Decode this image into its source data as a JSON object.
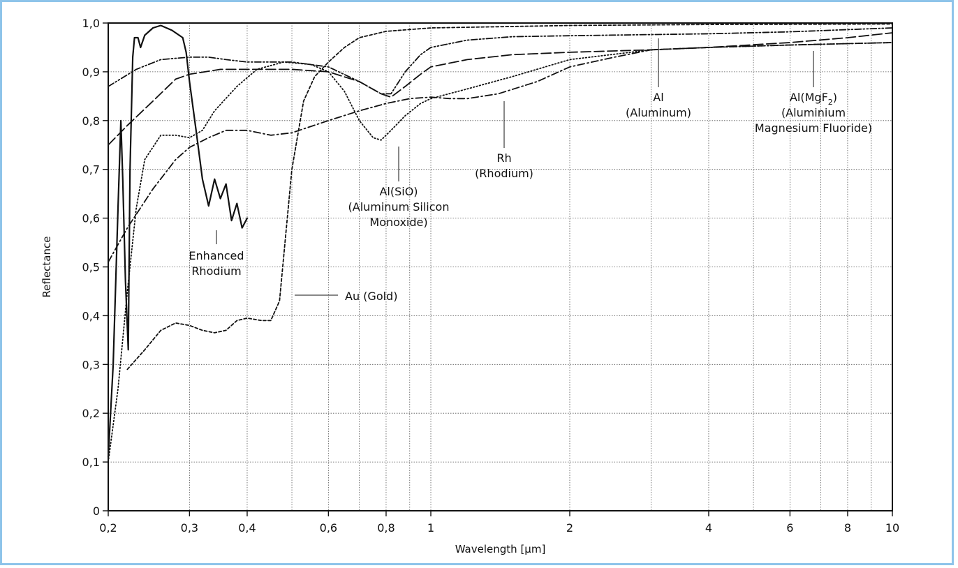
{
  "chart_data": {
    "type": "line",
    "xlabel": "Wavelength [µm]",
    "ylabel": "Reflectance",
    "xscale": "log",
    "xlim": [
      0.2,
      10
    ],
    "ylim": [
      0,
      1.0
    ],
    "grid": true,
    "x_ticks": [
      {
        "value": 0.2,
        "label": "0,2"
      },
      {
        "value": 0.3,
        "label": "0,3"
      },
      {
        "value": 0.4,
        "label": "0,4"
      },
      {
        "value": 0.6,
        "label": "0,6"
      },
      {
        "value": 0.8,
        "label": "0,8"
      },
      {
        "value": 1,
        "label": "1"
      },
      {
        "value": 2,
        "label": "2"
      },
      {
        "value": 4,
        "label": "4"
      },
      {
        "value": 6,
        "label": "6"
      },
      {
        "value": 8,
        "label": "8"
      },
      {
        "value": 10,
        "label": "10"
      }
    ],
    "x_minor_grid": [
      0.5,
      0.7,
      0.9,
      3,
      5,
      7,
      9
    ],
    "y_ticks": [
      {
        "value": 0,
        "label": "0"
      },
      {
        "value": 0.1,
        "label": "0,1"
      },
      {
        "value": 0.2,
        "label": "0,2"
      },
      {
        "value": 0.3,
        "label": "0,3"
      },
      {
        "value": 0.4,
        "label": "0,4"
      },
      {
        "value": 0.5,
        "label": "0,5"
      },
      {
        "value": 0.6,
        "label": "0,6"
      },
      {
        "value": 0.7,
        "label": "0,7"
      },
      {
        "value": 0.8,
        "label": "0,8"
      },
      {
        "value": 0.9,
        "label": "0,9"
      },
      {
        "value": 1.0,
        "label": "1,0"
      }
    ],
    "series": [
      {
        "key": "enhanced-rhodium",
        "style": "solid",
        "points": [
          [
            0.2,
            0.11
          ],
          [
            0.205,
            0.3
          ],
          [
            0.21,
            0.62
          ],
          [
            0.213,
            0.8
          ],
          [
            0.215,
            0.68
          ],
          [
            0.218,
            0.47
          ],
          [
            0.221,
            0.33
          ],
          [
            0.223,
            0.7
          ],
          [
            0.226,
            0.93
          ],
          [
            0.228,
            0.97
          ],
          [
            0.232,
            0.97
          ],
          [
            0.235,
            0.95
          ],
          [
            0.24,
            0.975
          ],
          [
            0.25,
            0.99
          ],
          [
            0.26,
            0.995
          ],
          [
            0.275,
            0.985
          ],
          [
            0.29,
            0.97
          ],
          [
            0.295,
            0.94
          ],
          [
            0.3,
            0.88
          ],
          [
            0.31,
            0.78
          ],
          [
            0.32,
            0.68
          ],
          [
            0.33,
            0.625
          ],
          [
            0.34,
            0.68
          ],
          [
            0.35,
            0.64
          ],
          [
            0.36,
            0.67
          ],
          [
            0.37,
            0.595
          ],
          [
            0.38,
            0.63
          ],
          [
            0.39,
            0.58
          ],
          [
            0.4,
            0.6
          ]
        ]
      },
      {
        "key": "au-gold",
        "style": "short-dash",
        "points": [
          [
            0.22,
            0.29
          ],
          [
            0.24,
            0.33
          ],
          [
            0.26,
            0.37
          ],
          [
            0.28,
            0.385
          ],
          [
            0.3,
            0.38
          ],
          [
            0.32,
            0.37
          ],
          [
            0.34,
            0.365
          ],
          [
            0.36,
            0.37
          ],
          [
            0.38,
            0.39
          ],
          [
            0.4,
            0.395
          ],
          [
            0.43,
            0.39
          ],
          [
            0.45,
            0.39
          ],
          [
            0.47,
            0.43
          ],
          [
            0.5,
            0.7
          ],
          [
            0.53,
            0.84
          ],
          [
            0.56,
            0.89
          ],
          [
            0.6,
            0.92
          ],
          [
            0.65,
            0.95
          ],
          [
            0.7,
            0.97
          ],
          [
            0.8,
            0.983
          ],
          [
            1.0,
            0.99
          ],
          [
            2.0,
            0.995
          ],
          [
            4.0,
            0.997
          ],
          [
            10.0,
            0.998
          ]
        ]
      },
      {
        "key": "al-sio",
        "style": "dotted",
        "points": [
          [
            0.2,
            0.1
          ],
          [
            0.21,
            0.25
          ],
          [
            0.22,
            0.45
          ],
          [
            0.23,
            0.62
          ],
          [
            0.24,
            0.72
          ],
          [
            0.26,
            0.77
          ],
          [
            0.28,
            0.77
          ],
          [
            0.3,
            0.765
          ],
          [
            0.32,
            0.78
          ],
          [
            0.34,
            0.82
          ],
          [
            0.38,
            0.87
          ],
          [
            0.42,
            0.905
          ],
          [
            0.48,
            0.92
          ],
          [
            0.55,
            0.915
          ],
          [
            0.6,
            0.9
          ],
          [
            0.65,
            0.86
          ],
          [
            0.7,
            0.8
          ],
          [
            0.75,
            0.765
          ],
          [
            0.78,
            0.76
          ],
          [
            0.82,
            0.78
          ],
          [
            0.88,
            0.81
          ],
          [
            0.95,
            0.835
          ],
          [
            1.0,
            0.845
          ],
          [
            1.2,
            0.865
          ],
          [
            1.5,
            0.89
          ],
          [
            2.0,
            0.925
          ],
          [
            3.0,
            0.945
          ],
          [
            4.0,
            0.95
          ],
          [
            6.0,
            0.955
          ],
          [
            10.0,
            0.96
          ]
        ]
      },
      {
        "key": "rh-rhodium",
        "style": "dash-dot",
        "points": [
          [
            0.2,
            0.51
          ],
          [
            0.22,
            0.58
          ],
          [
            0.25,
            0.66
          ],
          [
            0.28,
            0.72
          ],
          [
            0.3,
            0.745
          ],
          [
            0.33,
            0.765
          ],
          [
            0.36,
            0.78
          ],
          [
            0.4,
            0.78
          ],
          [
            0.45,
            0.77
          ],
          [
            0.5,
            0.775
          ],
          [
            0.6,
            0.8
          ],
          [
            0.7,
            0.82
          ],
          [
            0.8,
            0.835
          ],
          [
            0.9,
            0.845
          ],
          [
            1.0,
            0.848
          ],
          [
            1.1,
            0.845
          ],
          [
            1.2,
            0.845
          ],
          [
            1.4,
            0.855
          ],
          [
            1.7,
            0.88
          ],
          [
            2.0,
            0.91
          ],
          [
            2.5,
            0.93
          ],
          [
            3.0,
            0.945
          ],
          [
            4.0,
            0.95
          ],
          [
            6.0,
            0.955
          ],
          [
            10.0,
            0.96
          ]
        ]
      },
      {
        "key": "al-aluminum",
        "style": "dash-dot-dot",
        "points": [
          [
            0.2,
            0.87
          ],
          [
            0.23,
            0.905
          ],
          [
            0.26,
            0.925
          ],
          [
            0.3,
            0.93
          ],
          [
            0.33,
            0.93
          ],
          [
            0.36,
            0.925
          ],
          [
            0.4,
            0.92
          ],
          [
            0.5,
            0.92
          ],
          [
            0.6,
            0.91
          ],
          [
            0.7,
            0.88
          ],
          [
            0.78,
            0.855
          ],
          [
            0.82,
            0.855
          ],
          [
            0.88,
            0.9
          ],
          [
            0.95,
            0.935
          ],
          [
            1.0,
            0.95
          ],
          [
            1.2,
            0.965
          ],
          [
            1.5,
            0.972
          ],
          [
            2.0,
            0.974
          ],
          [
            4.0,
            0.978
          ],
          [
            6.0,
            0.982
          ],
          [
            10.0,
            0.99
          ]
        ]
      },
      {
        "key": "al-mgf2",
        "style": "long-dash",
        "points": [
          [
            0.2,
            0.75
          ],
          [
            0.22,
            0.79
          ],
          [
            0.25,
            0.84
          ],
          [
            0.28,
            0.885
          ],
          [
            0.3,
            0.895
          ],
          [
            0.35,
            0.905
          ],
          [
            0.4,
            0.905
          ],
          [
            0.5,
            0.905
          ],
          [
            0.6,
            0.9
          ],
          [
            0.7,
            0.88
          ],
          [
            0.78,
            0.855
          ],
          [
            0.82,
            0.848
          ],
          [
            0.88,
            0.87
          ],
          [
            0.95,
            0.895
          ],
          [
            1.0,
            0.91
          ],
          [
            1.2,
            0.925
          ],
          [
            1.5,
            0.935
          ],
          [
            2.0,
            0.94
          ],
          [
            3.0,
            0.945
          ],
          [
            4.0,
            0.95
          ],
          [
            6.0,
            0.96
          ],
          [
            8.0,
            0.97
          ],
          [
            10.0,
            0.98
          ]
        ]
      }
    ],
    "annotations": [
      {
        "key": "enhanced-rhodium",
        "lines": [
          "Enhanced",
          "Rhodium"
        ],
        "anchor": [
          0.33,
          0.6
        ]
      },
      {
        "key": "au-gold",
        "lines": [
          "Au (Gold)"
        ],
        "anchor": [
          0.53,
          0.445
        ]
      },
      {
        "key": "al-sio",
        "lines": [
          "Al(SiO)",
          "(Aluminum Silicon",
          "Monoxide)"
        ],
        "anchor": [
          0.78,
          0.76
        ]
      },
      {
        "key": "rh-rhodium",
        "lines": [
          "Rh",
          "(Rhodium)"
        ],
        "anchor": [
          1.4,
          0.86
        ]
      },
      {
        "key": "al-aluminum",
        "lines": [
          "Al",
          "(Aluminum)"
        ],
        "anchor": [
          3.0,
          0.975
        ]
      },
      {
        "key": "al-mgf2",
        "lines": [
          "Al(MgF",
          "2",
          ")",
          "(Aluminium",
          "Magnesium Fluoride)"
        ],
        "anchor": [
          6.8,
          0.957
        ]
      }
    ]
  }
}
